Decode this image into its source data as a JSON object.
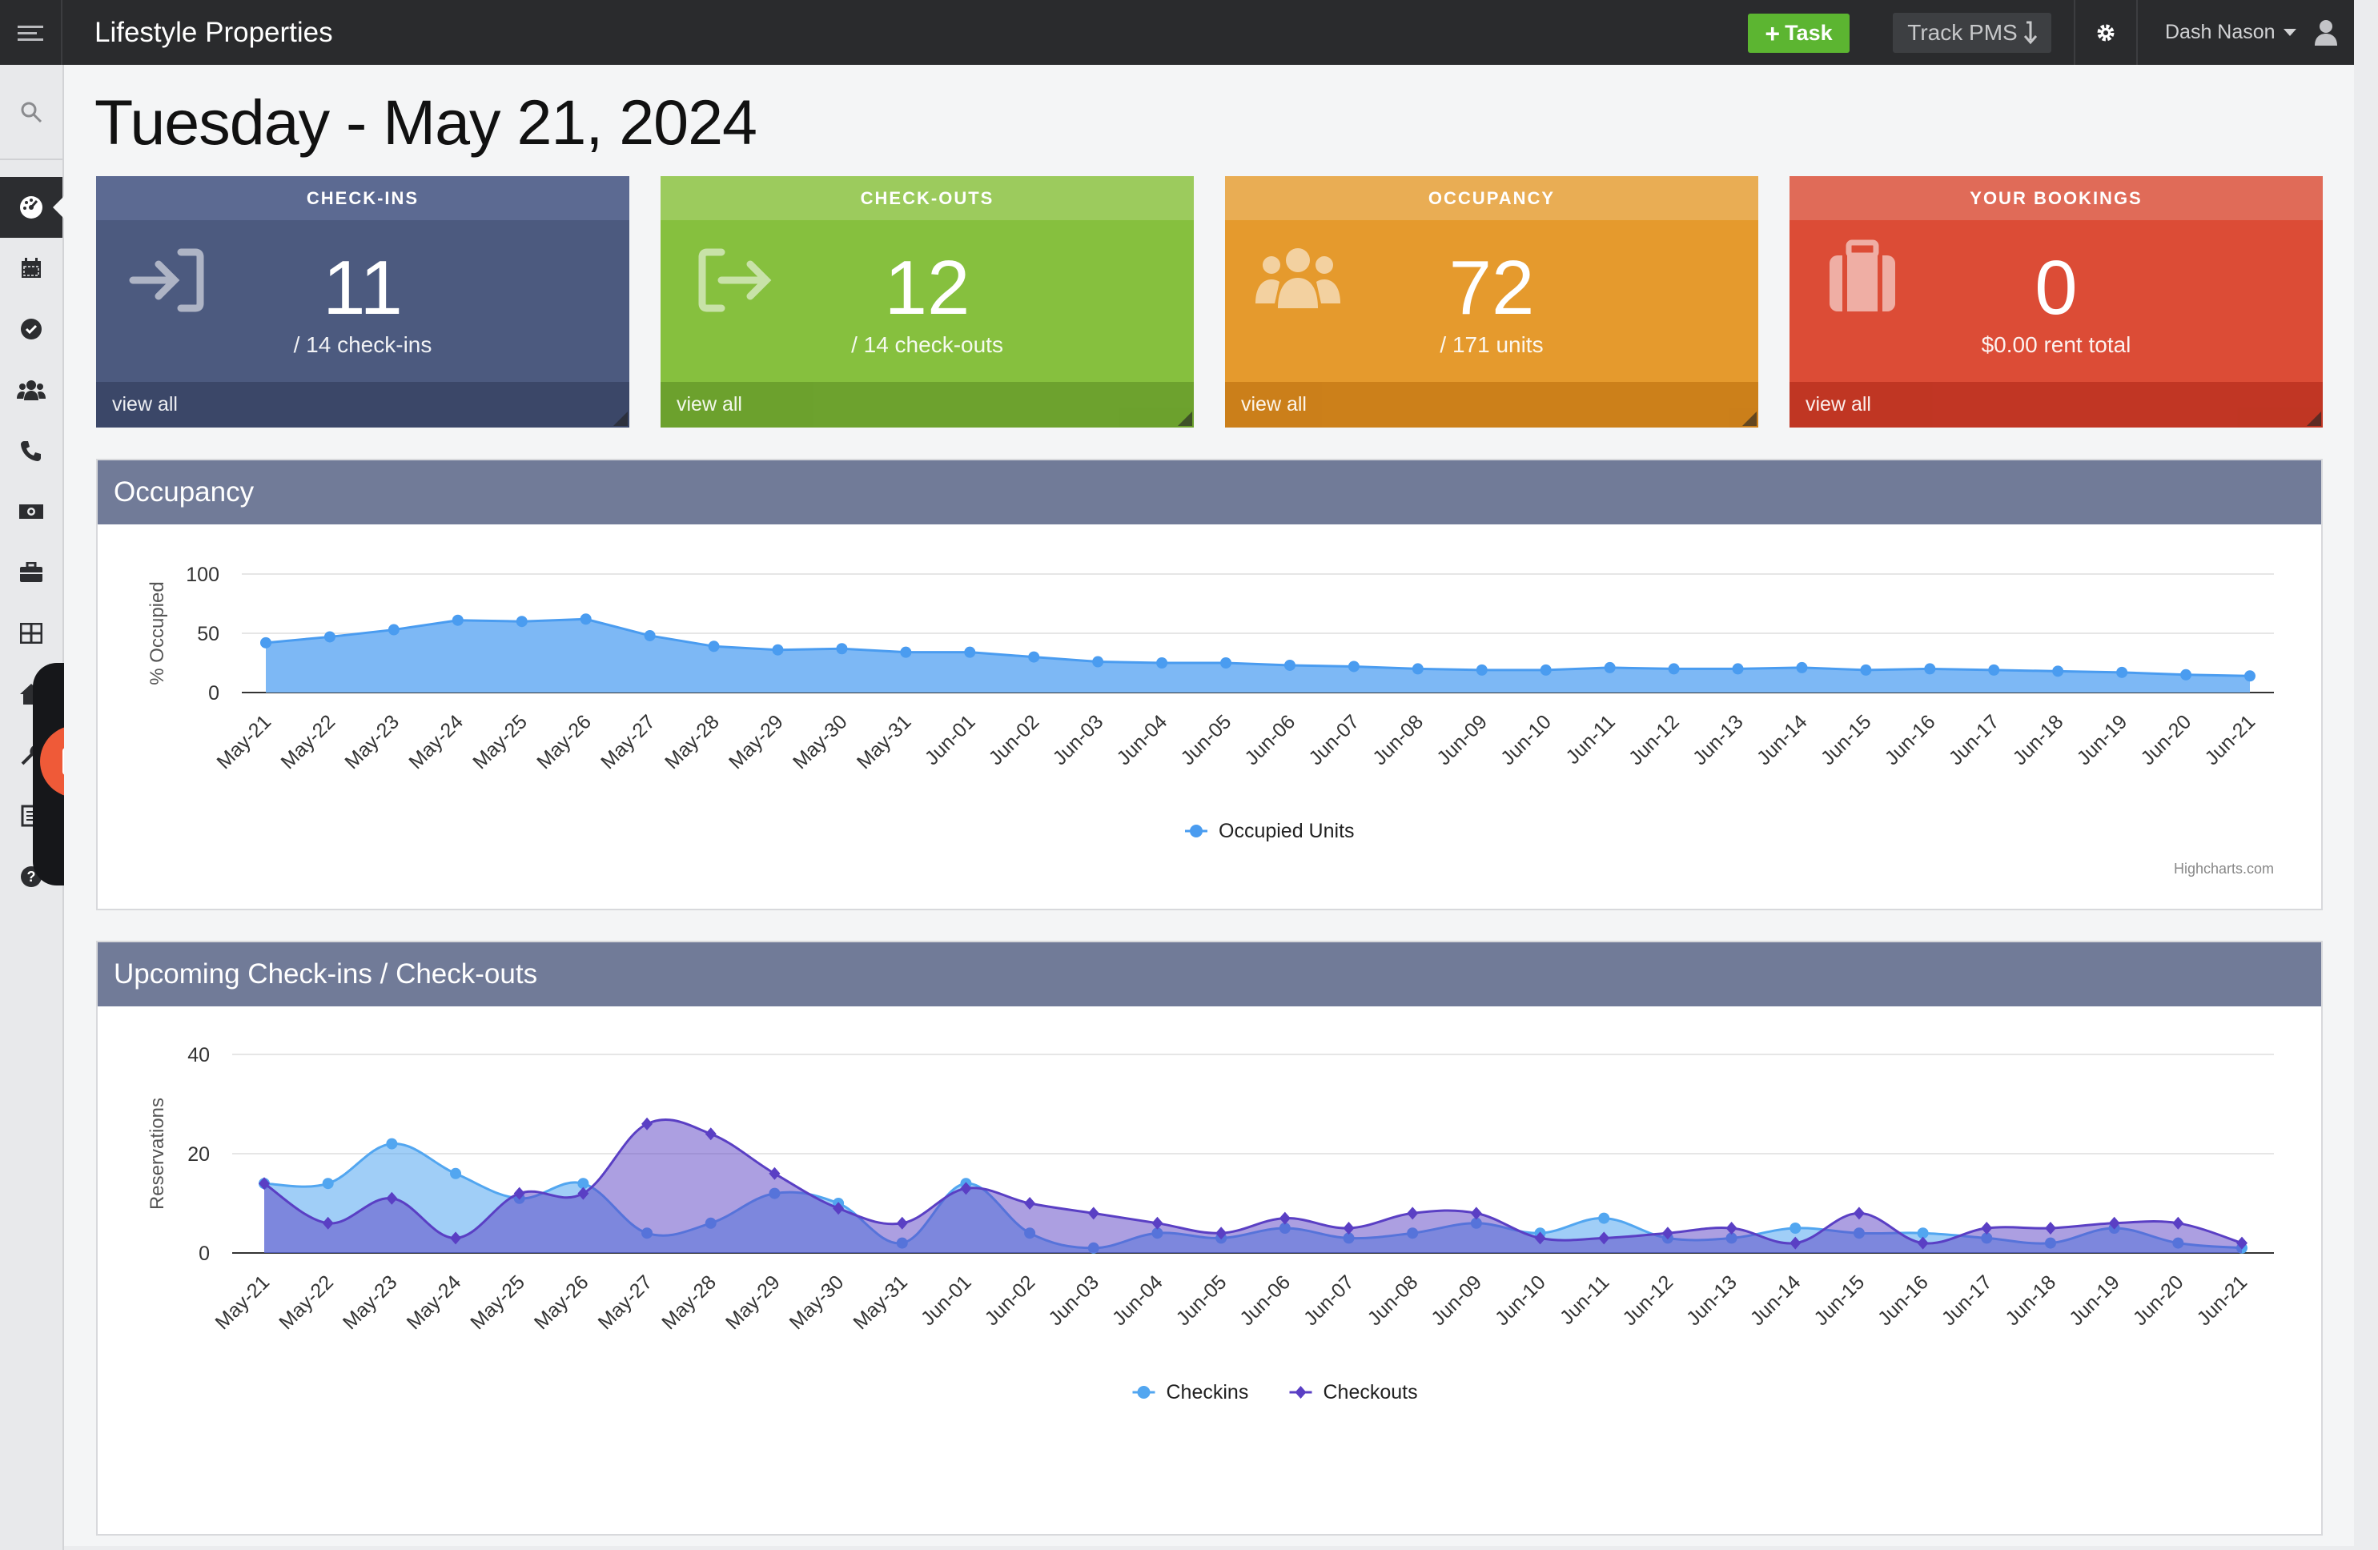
{
  "app": {
    "title": "Lifestyle Properties",
    "task_label": "Task",
    "track_label": "Track PMS",
    "user_name": "Dash Nason"
  },
  "page": {
    "title": "Tuesday - May 21, 2024"
  },
  "cards": [
    {
      "header": "CHECK-INS",
      "value": "11",
      "sub": "/ 14 check-ins",
      "footer": "view all",
      "icon": "sign-in-icon"
    },
    {
      "header": "CHECK-OUTS",
      "value": "12",
      "sub": "/ 14 check-outs",
      "footer": "view all",
      "icon": "sign-out-icon"
    },
    {
      "header": "OCCUPANCY",
      "value": "72",
      "sub": "/ 171 units",
      "footer": "view all",
      "icon": "users-icon"
    },
    {
      "header": "YOUR BOOKINGS",
      "value": "0",
      "sub": "$0.00 rent total",
      "footer": "view all",
      "icon": "suitcase-icon"
    }
  ],
  "sidebar": {
    "items": [
      "search-icon",
      "dashboard-icon",
      "calendar-icon",
      "check-circle-icon",
      "users-icon",
      "phone-icon",
      "money-icon",
      "briefcase-icon",
      "grid-icon",
      "home-icon",
      "wrench-icon",
      "list-icon",
      "help-icon"
    ]
  },
  "colors": {
    "topbar": "#2a2b2d",
    "task_button": "#5cb531",
    "checkins_card": "#4c5a7f",
    "checkouts_card": "#86c03e",
    "occupancy_card": "#e59a2d",
    "bookings_card": "#dc4c36",
    "panel_header": "#717b98",
    "occupied_series": "#5aa6f2",
    "checkins_series": "#52a6f0",
    "checkouts_series": "#5a3fc4",
    "recorder_stop": "#ef5a38"
  },
  "panels": {
    "occupancy_title": "Occupancy",
    "checks_title": "Upcoming Check-ins / Check-outs",
    "credit": "Highcharts.com"
  },
  "chart_data": [
    {
      "type": "area",
      "ylabel": "% Occupied",
      "ylim": [
        0,
        100
      ],
      "yticks": [
        0,
        50,
        100
      ],
      "grid": true,
      "legend": "bottom-center",
      "categories": [
        "May-21",
        "May-22",
        "May-23",
        "May-24",
        "May-25",
        "May-26",
        "May-27",
        "May-28",
        "May-29",
        "May-30",
        "May-31",
        "Jun-01",
        "Jun-02",
        "Jun-03",
        "Jun-04",
        "Jun-05",
        "Jun-06",
        "Jun-07",
        "Jun-08",
        "Jun-09",
        "Jun-10",
        "Jun-11",
        "Jun-12",
        "Jun-13",
        "Jun-14",
        "Jun-15",
        "Jun-16",
        "Jun-17",
        "Jun-18",
        "Jun-19",
        "Jun-20",
        "Jun-21"
      ],
      "series": [
        {
          "name": "Occupied Units",
          "values": [
            42,
            47,
            53,
            61,
            60,
            62,
            48,
            39,
            36,
            37,
            34,
            34,
            30,
            26,
            25,
            25,
            23,
            22,
            20,
            19,
            19,
            21,
            20,
            20,
            21,
            19,
            20,
            19,
            18,
            17,
            15,
            14
          ]
        }
      ]
    },
    {
      "type": "area",
      "ylabel": "Reservations",
      "ylim": [
        0,
        40
      ],
      "yticks": [
        0,
        20,
        40
      ],
      "grid": true,
      "legend": "bottom-center",
      "categories": [
        "May-21",
        "May-22",
        "May-23",
        "May-24",
        "May-25",
        "May-26",
        "May-27",
        "May-28",
        "May-29",
        "May-30",
        "May-31",
        "Jun-01",
        "Jun-02",
        "Jun-03",
        "Jun-04",
        "Jun-05",
        "Jun-06",
        "Jun-07",
        "Jun-08",
        "Jun-09",
        "Jun-10",
        "Jun-11",
        "Jun-12",
        "Jun-13",
        "Jun-14",
        "Jun-15",
        "Jun-16",
        "Jun-17",
        "Jun-18",
        "Jun-19",
        "Jun-20",
        "Jun-21"
      ],
      "series": [
        {
          "name": "Checkins",
          "values": [
            14,
            14,
            22,
            16,
            11,
            14,
            4,
            6,
            12,
            10,
            2,
            14,
            4,
            1,
            4,
            3,
            5,
            3,
            4,
            6,
            4,
            7,
            3,
            3,
            5,
            4,
            4,
            3,
            2,
            5,
            2,
            1
          ]
        },
        {
          "name": "Checkouts",
          "values": [
            14,
            6,
            11,
            3,
            12,
            12,
            26,
            24,
            16,
            9,
            6,
            13,
            10,
            8,
            6,
            4,
            7,
            5,
            8,
            8,
            3,
            3,
            4,
            5,
            2,
            8,
            2,
            5,
            5,
            6,
            6,
            2
          ]
        }
      ]
    }
  ]
}
